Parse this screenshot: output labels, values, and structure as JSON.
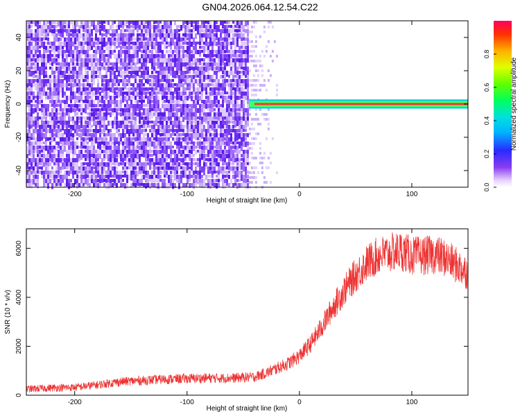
{
  "title": "GN04.2026.064.12.54.C22",
  "chart_data": [
    {
      "type": "heatmap",
      "xlabel": "Height of straight line (km)",
      "ylabel": "Frequency (Hz)",
      "xlim": [
        -243,
        150
      ],
      "ylim": [
        -50,
        50
      ],
      "xticks": [
        -200,
        -100,
        0,
        100
      ],
      "yticks": [
        -40,
        -20,
        0,
        20,
        40
      ],
      "colorbar": {
        "label": "Normalized spectral amplitude",
        "range": [
          0,
          1
        ],
        "ticks": [
          0.0,
          0.2,
          0.4,
          0.6,
          0.8
        ]
      },
      "regions": [
        {
          "x_range": [
            -243,
            -45
          ],
          "y_range": [
            -50,
            50
          ],
          "amplitude": 0.12
        },
        {
          "x_range": [
            -45,
            -20
          ],
          "y_range": [
            -50,
            50
          ],
          "amplitude": 0.05
        },
        {
          "x_range": [
            -45,
            150
          ],
          "y_range": [
            -1.5,
            1.5
          ],
          "amplitude": 0.95
        }
      ]
    },
    {
      "type": "line",
      "xlabel": "Height of straight line (km)",
      "ylabel": "SNR (10 * v/v)",
      "xlim": [
        -243,
        150
      ],
      "ylim": [
        0,
        6800
      ],
      "xticks": [
        -200,
        -100,
        0,
        100
      ],
      "yticks": [
        0,
        2000,
        4000,
        6000
      ],
      "series": [
        {
          "color": "#ee3333",
          "x": [
            -243,
            -220,
            -200,
            -180,
            -160,
            -140,
            -120,
            -100,
            -80,
            -60,
            -40,
            -30,
            -20,
            -10,
            0,
            10,
            20,
            30,
            40,
            50,
            60,
            70,
            80,
            90,
            100,
            110,
            120,
            130,
            140,
            150
          ],
          "y": [
            250,
            300,
            320,
            420,
            550,
            600,
            650,
            680,
            700,
            700,
            750,
            900,
            1100,
            1300,
            1600,
            2100,
            2800,
            3600,
            4300,
            4900,
            5400,
            5700,
            5800,
            5900,
            5700,
            5700,
            5750,
            5600,
            5300,
            5000
          ]
        }
      ]
    }
  ]
}
